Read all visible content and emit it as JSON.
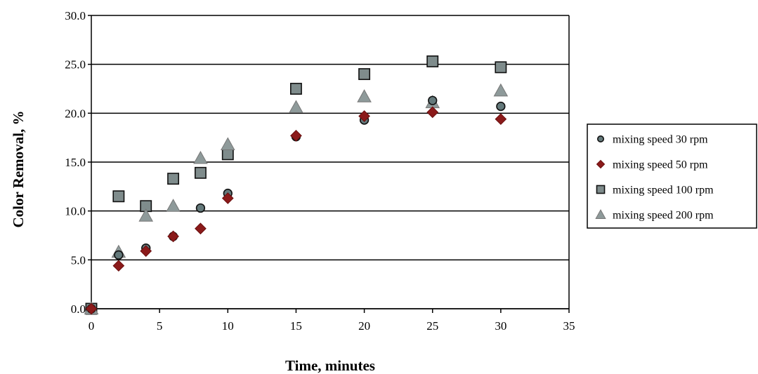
{
  "chart_data": {
    "type": "scatter",
    "title": "",
    "xlabel": "Time, minutes",
    "ylabel": "Color Removal, %",
    "xlim": [
      0,
      35
    ],
    "ylim": [
      0,
      30
    ],
    "x_ticks": [
      "0",
      "5",
      "10",
      "15",
      "20",
      "25",
      "30",
      "35"
    ],
    "y_ticks": [
      "0.0",
      "5.0",
      "10.0",
      "15.0",
      "20.0",
      "25.0",
      "30.0"
    ],
    "grid": "horizontal",
    "legend_position": "right",
    "series": [
      {
        "name": "mixing speed 30 rpm",
        "marker": "circle",
        "color": "#64797b",
        "points": [
          [
            0,
            0.0
          ],
          [
            2,
            5.5
          ],
          [
            4,
            6.2
          ],
          [
            6,
            7.4
          ],
          [
            8,
            10.3
          ],
          [
            10,
            11.8
          ],
          [
            15,
            17.6
          ],
          [
            20,
            19.3
          ],
          [
            25,
            21.3
          ],
          [
            30,
            20.7
          ]
        ]
      },
      {
        "name": "mixing speed 50 rpm",
        "marker": "diamond",
        "color": "#8b1a1a",
        "points": [
          [
            0,
            0.0
          ],
          [
            2,
            4.4
          ],
          [
            4,
            5.9
          ],
          [
            6,
            7.4
          ],
          [
            8,
            8.2
          ],
          [
            10,
            11.3
          ],
          [
            15,
            17.7
          ],
          [
            20,
            19.7
          ],
          [
            25,
            20.1
          ],
          [
            30,
            19.4
          ]
        ]
      },
      {
        "name": "mixing speed 100 rpm",
        "marker": "square",
        "color": "#7f8c8c",
        "points": [
          [
            0,
            0.0
          ],
          [
            2,
            11.5
          ],
          [
            4,
            10.5
          ],
          [
            6,
            13.3
          ],
          [
            8,
            13.9
          ],
          [
            10,
            15.8
          ],
          [
            15,
            22.5
          ],
          [
            20,
            24.0
          ],
          [
            25,
            25.3
          ],
          [
            30,
            24.7
          ]
        ]
      },
      {
        "name": "mixing speed 200 rpm",
        "marker": "triangle",
        "color": "#8e9a9a",
        "points": [
          [
            0,
            0.0
          ],
          [
            2,
            5.8
          ],
          [
            4,
            9.5
          ],
          [
            6,
            10.5
          ],
          [
            8,
            15.4
          ],
          [
            10,
            16.8
          ],
          [
            15,
            20.6
          ],
          [
            20,
            21.7
          ],
          [
            25,
            21.1
          ],
          [
            30,
            22.3
          ]
        ]
      }
    ]
  }
}
